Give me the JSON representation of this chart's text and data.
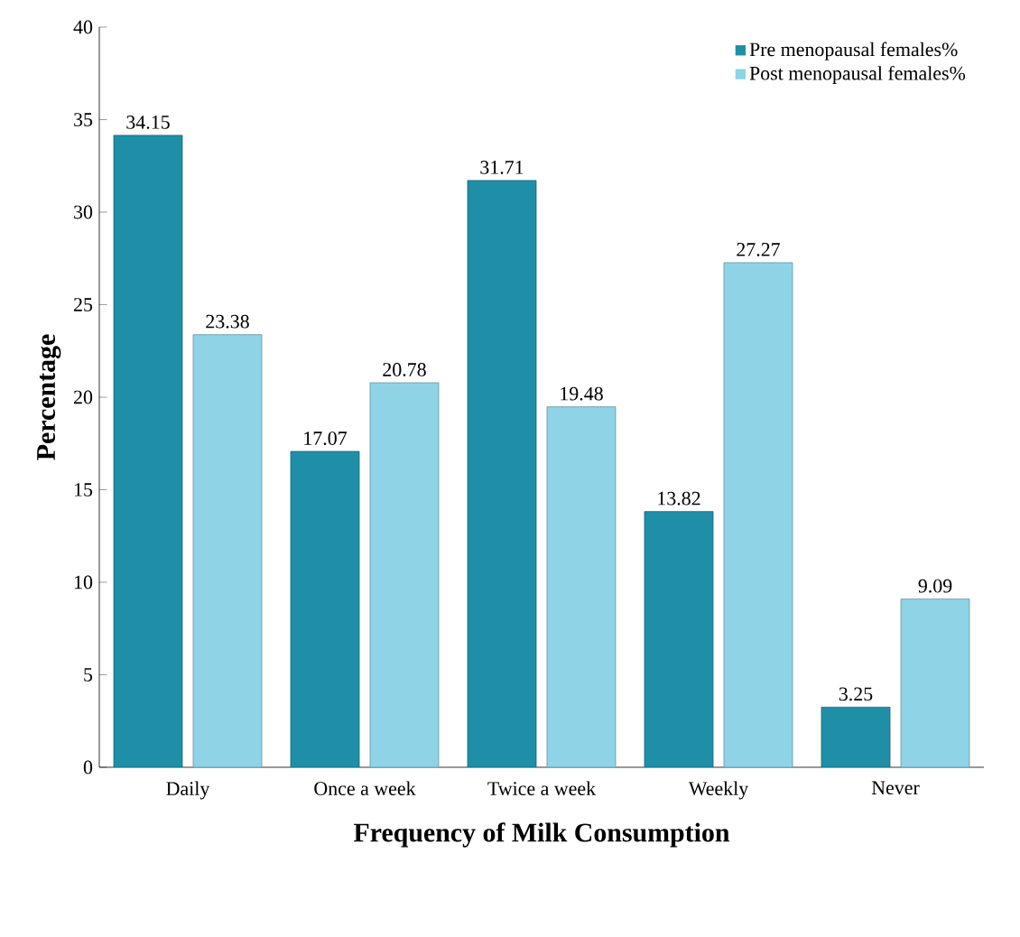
{
  "chart_data": {
    "type": "bar",
    "xlabel": "Frequency of Milk Consumption",
    "ylabel": "Percentage",
    "categories": [
      "Daily",
      "Once a week",
      "Twice a week",
      "Weekly",
      "Never"
    ],
    "series": [
      {
        "name": "Pre menopausal females%",
        "color": "#1f8fa8",
        "values": [
          34.15,
          17.07,
          31.71,
          13.82,
          3.25
        ]
      },
      {
        "name": "Post menopausal females%",
        "color": "#8fd3e6",
        "values": [
          23.38,
          20.78,
          19.48,
          27.27,
          9.09
        ]
      }
    ],
    "ylim": [
      0,
      40
    ],
    "yticks": [
      0,
      5,
      10,
      15,
      20,
      25,
      30,
      35,
      40
    ],
    "data_labels": true,
    "legend": "top right",
    "grid": false
  }
}
